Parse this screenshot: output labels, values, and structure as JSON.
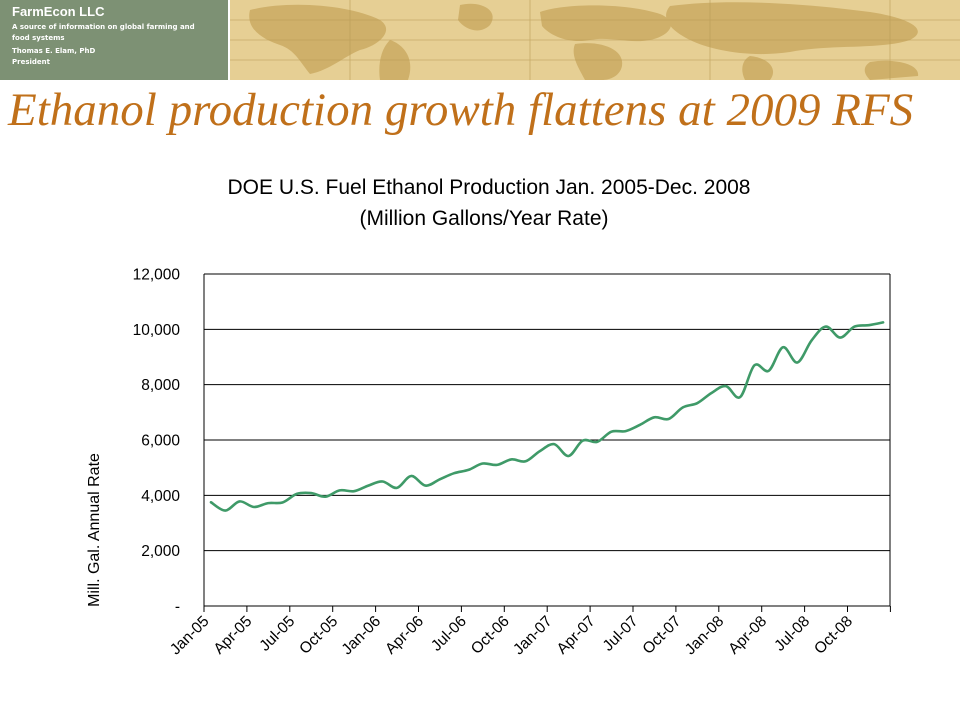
{
  "header": {
    "brand_name": "FarmEcon LLC",
    "brand_tagline": "A source of information on global farming and food systems",
    "person_name": "Thomas E. Elam, PhD",
    "person_title": "President",
    "banner_colors": {
      "brand_panel": "#7d9174",
      "map_background": "#e6cf94",
      "map_land": "#cfb06a"
    }
  },
  "slide": {
    "headline": "Ethanol production growth flattens at 2009 RFS",
    "headline_color": "#c0701a"
  },
  "chart_data": {
    "type": "line",
    "title": "DOE U.S. Fuel Ethanol Production Jan. 2005-Dec. 2008",
    "subtitle": "(Million Gallons/Year Rate)",
    "xlabel": "",
    "ylabel": "Mill. Gal. Annual Rate",
    "ylim": [
      0,
      12000
    ],
    "yticks": [
      0,
      2000,
      4000,
      6000,
      8000,
      10000,
      12000
    ],
    "ytick_labels": [
      "-",
      "2,000",
      "4,000",
      "6,000",
      "8,000",
      "10,000",
      "12,000"
    ],
    "xtick_labels": [
      "Jan-05",
      "Apr-05",
      "Jul-05",
      "Oct-05",
      "Jan-06",
      "Apr-06",
      "Jul-06",
      "Oct-06",
      "Jan-07",
      "Apr-07",
      "Jul-07",
      "Oct-07",
      "Jan-08",
      "Apr-08",
      "Jul-08",
      "Oct-08"
    ],
    "grid": true,
    "legend": "none",
    "series": [
      {
        "color": "#3f9a68",
        "x": [
          "Jan-05",
          "Feb-05",
          "Mar-05",
          "Apr-05",
          "May-05",
          "Jun-05",
          "Jul-05",
          "Aug-05",
          "Sep-05",
          "Oct-05",
          "Nov-05",
          "Dec-05",
          "Jan-06",
          "Feb-06",
          "Mar-06",
          "Apr-06",
          "May-06",
          "Jun-06",
          "Jul-06",
          "Aug-06",
          "Sep-06",
          "Oct-06",
          "Nov-06",
          "Dec-06",
          "Jan-07",
          "Feb-07",
          "Mar-07",
          "Apr-07",
          "May-07",
          "Jun-07",
          "Jul-07",
          "Aug-07",
          "Sep-07",
          "Oct-07",
          "Nov-07",
          "Dec-07",
          "Jan-08",
          "Feb-08",
          "Mar-08",
          "Apr-08",
          "May-08",
          "Jun-08",
          "Jul-08",
          "Aug-08",
          "Sep-08",
          "Oct-08",
          "Nov-08",
          "Dec-08"
        ],
        "values": [
          3750,
          3450,
          3780,
          3580,
          3720,
          3740,
          4050,
          4080,
          3950,
          4180,
          4150,
          4350,
          4500,
          4270,
          4700,
          4350,
          4580,
          4800,
          4920,
          5150,
          5100,
          5300,
          5230,
          5600,
          5850,
          5420,
          5980,
          5930,
          6300,
          6320,
          6550,
          6820,
          6760,
          7180,
          7330,
          7700,
          7950,
          7550,
          8700,
          8500,
          9350,
          8800,
          9600,
          10100,
          9700,
          10100,
          10150,
          10250
        ]
      }
    ]
  }
}
